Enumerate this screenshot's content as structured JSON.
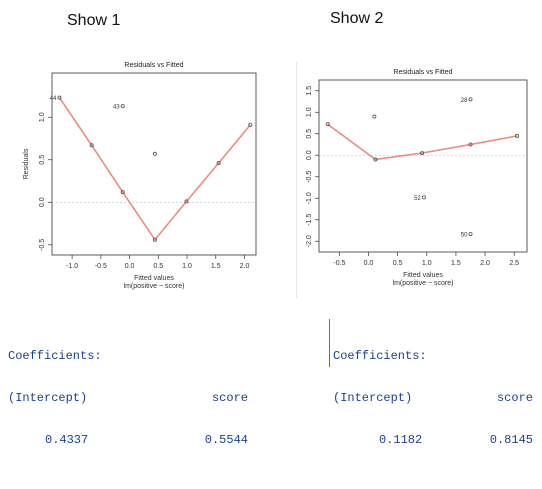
{
  "panels": [
    {
      "title": "Show 1"
    },
    {
      "title": "Show 2"
    }
  ],
  "colors": {
    "fit_line": "#f08a80",
    "points": "#555555",
    "zero_line": "#bbbbbb",
    "coef_text": "#1f3f8f"
  },
  "chart_data": [
    {
      "type": "scatter",
      "title": "Residuals vs Fitted",
      "xlabel": "Fitted values",
      "subtitle": "lm(positive ~ score)",
      "ylabel": "Residuals",
      "xlim": [
        -1.35,
        2.2
      ],
      "ylim": [
        -0.62,
        1.52
      ],
      "xticks": [
        -1.0,
        -0.5,
        0.0,
        0.5,
        1.0,
        1.5,
        2.0
      ],
      "xtick_labels": [
        "-1.0",
        "-0.5",
        "0.0",
        "0.5",
        "1.0",
        "1.5",
        "2.0"
      ],
      "yticks": [
        -0.5,
        0.0,
        0.5,
        1.0
      ],
      "ytick_labels": [
        "-0.5",
        "0.0",
        "0.5",
        "1.0"
      ],
      "points": [
        {
          "x": -1.22,
          "y": 1.23,
          "label": "44"
        },
        {
          "x": -0.66,
          "y": 0.67
        },
        {
          "x": -0.12,
          "y": 0.12
        },
        {
          "x": -0.12,
          "y": 1.13,
          "label": "43"
        },
        {
          "x": 0.44,
          "y": 0.57
        },
        {
          "x": 0.44,
          "y": -0.44
        },
        {
          "x": 0.99,
          "y": 0.01
        },
        {
          "x": 1.55,
          "y": 0.46
        },
        {
          "x": 2.1,
          "y": 0.91
        }
      ],
      "smoother": [
        [
          -1.22,
          1.23
        ],
        [
          -0.66,
          0.67
        ],
        [
          -0.12,
          0.12
        ],
        [
          0.44,
          -0.44
        ],
        [
          0.99,
          0.01
        ],
        [
          1.55,
          0.46
        ],
        [
          2.1,
          0.91
        ]
      ],
      "grid": false
    },
    {
      "type": "scatter",
      "title": "Residuals vs Fitted",
      "xlabel": "Fitted values",
      "subtitle": "lm(positive ~ score)",
      "ylabel": "Residuals",
      "xlim": [
        -0.85,
        2.72
      ],
      "ylim": [
        -2.25,
        1.75
      ],
      "xticks": [
        -0.5,
        0.0,
        0.5,
        1.0,
        1.5,
        2.0,
        2.5
      ],
      "xtick_labels": [
        "-0.5",
        "0.0",
        "0.5",
        "1.0",
        "1.5",
        "2.0",
        "2.5"
      ],
      "yticks": [
        -2.0,
        -1.5,
        -1.0,
        -0.5,
        0.0,
        0.5,
        1.0,
        1.5
      ],
      "ytick_labels": [
        "-2.0",
        "-1.5",
        "-1.0",
        "-0.5",
        "0.0",
        "0.5",
        "1.0",
        "1.5"
      ],
      "points": [
        {
          "x": -0.7,
          "y": 0.72
        },
        {
          "x": 0.1,
          "y": 0.9
        },
        {
          "x": 1.75,
          "y": 1.3,
          "label": "28"
        },
        {
          "x": 0.95,
          "y": -0.98,
          "label": "52"
        },
        {
          "x": 1.75,
          "y": -1.83,
          "label": "50"
        },
        {
          "x": 0.12,
          "y": -0.1
        },
        {
          "x": 0.92,
          "y": 0.05
        },
        {
          "x": 1.75,
          "y": 0.25
        },
        {
          "x": 2.55,
          "y": 0.45
        }
      ],
      "smoother": [
        [
          -0.7,
          0.72
        ],
        [
          0.12,
          -0.1
        ],
        [
          0.92,
          0.05
        ],
        [
          1.75,
          0.25
        ],
        [
          2.55,
          0.45
        ]
      ],
      "grid": false
    }
  ],
  "coefficients": [
    {
      "header": "Coefficients:",
      "intercept_label": "(Intercept)",
      "slope_label": "score",
      "intercept": "0.4337",
      "slope": "0.5544"
    },
    {
      "header": "Coefficients:",
      "intercept_label": "(Intercept)",
      "slope_label": "score",
      "intercept": "0.1182",
      "slope": "0.8145"
    }
  ]
}
